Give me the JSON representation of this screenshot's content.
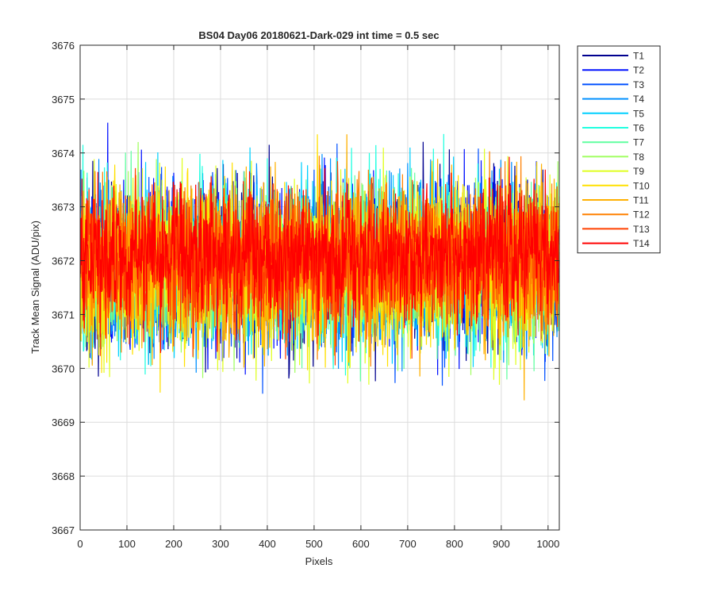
{
  "chart_data": {
    "type": "line",
    "title": "BS04 Day06 20180621-Dark-029 int time = 0.5 sec",
    "xlabel": "Pixels",
    "ylabel": "Track Mean Signal (ADU/pix)",
    "xlim": [
      0,
      1024
    ],
    "ylim": [
      3667,
      3676
    ],
    "xticks": [
      0,
      100,
      200,
      300,
      400,
      500,
      600,
      700,
      800,
      900,
      1000
    ],
    "yticks": [
      3667,
      3668,
      3669,
      3670,
      3671,
      3672,
      3673,
      3674,
      3675,
      3676
    ],
    "grid": true,
    "legend_position": "outside-top-right",
    "series": [
      {
        "name": "T1",
        "color": "#00008f",
        "mean": 3671.9,
        "spread": 1.05
      },
      {
        "name": "T2",
        "color": "#0010ff",
        "mean": 3671.9,
        "spread": 1.05
      },
      {
        "name": "T3",
        "color": "#0050ff",
        "mean": 3671.9,
        "spread": 1.05
      },
      {
        "name": "T4",
        "color": "#0090ff",
        "mean": 3671.9,
        "spread": 1.05
      },
      {
        "name": "T5",
        "color": "#00d0ff",
        "mean": 3671.9,
        "spread": 1.05
      },
      {
        "name": "T6",
        "color": "#20ffe0",
        "mean": 3671.9,
        "spread": 1.05
      },
      {
        "name": "T7",
        "color": "#60ffa0",
        "mean": 3671.9,
        "spread": 1.05
      },
      {
        "name": "T8",
        "color": "#a0ff60",
        "mean": 3671.9,
        "spread": 1.05
      },
      {
        "name": "T9",
        "color": "#e0ff20",
        "mean": 3671.9,
        "spread": 1.05
      },
      {
        "name": "T10",
        "color": "#ffe000",
        "mean": 3671.9,
        "spread": 1.05
      },
      {
        "name": "T11",
        "color": "#ffb000",
        "mean": 3671.9,
        "spread": 1.05
      },
      {
        "name": "T12",
        "color": "#ff8000",
        "mean": 3672.0,
        "spread": 0.95
      },
      {
        "name": "T13",
        "color": "#ff4000",
        "mean": 3672.0,
        "spread": 0.9
      },
      {
        "name": "T14",
        "color": "#ff0000",
        "mean": 3672.1,
        "spread": 0.85
      }
    ]
  }
}
